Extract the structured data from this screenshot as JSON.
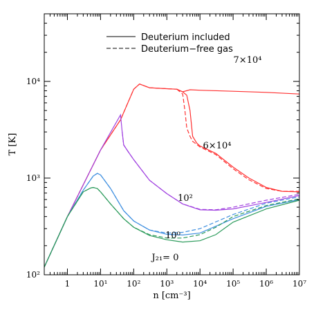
{
  "chart_data": {
    "type": "line",
    "xlabel": "n [cm⁻³]",
    "ylabel": "T [K]",
    "xscale": "log",
    "yscale": "log",
    "xlim": [
      0.2,
      10000000
    ],
    "ylim": [
      100,
      50000
    ],
    "x_ticks": [
      {
        "value": 1,
        "label": "1"
      },
      {
        "value": 10,
        "label": "10¹"
      },
      {
        "value": 100,
        "label": "10²"
      },
      {
        "value": 1000,
        "label": "10³"
      },
      {
        "value": 10000,
        "label": "10⁴"
      },
      {
        "value": 100000,
        "label": "10⁵"
      },
      {
        "value": 1000000,
        "label": "10⁶"
      },
      {
        "value": 10000000,
        "label": "10⁷"
      }
    ],
    "y_ticks": [
      {
        "value": 100,
        "label": "10²"
      },
      {
        "value": 1000,
        "label": "10³"
      },
      {
        "value": 10000,
        "label": "10⁴"
      }
    ],
    "legend": {
      "placement": "top-center",
      "entries": [
        {
          "label": "Deuterium included",
          "dash": "solid"
        },
        {
          "label": "Deuterium−free gas",
          "dash": "dashed"
        }
      ]
    },
    "series": [
      {
        "label": "7×10⁴",
        "color": "#ff3030",
        "dash": "solid",
        "x": [
          0.2,
          1,
          10,
          40,
          100,
          150,
          300,
          1000,
          2000,
          3000,
          5000,
          10000,
          100000,
          1000000,
          10000000
        ],
        "y": [
          120,
          400,
          1950,
          4000,
          8300,
          9400,
          8600,
          8400,
          8300,
          7800,
          8200,
          8100,
          7900,
          7700,
          7400
        ]
      },
      {
        "label": "",
        "color": "#ff3030",
        "dash": "dashed",
        "x": [
          0.2,
          1,
          10,
          40,
          100,
          150,
          300,
          1000,
          2000,
          2500
        ],
        "y": [
          120,
          400,
          1950,
          4000,
          8300,
          9400,
          8600,
          8400,
          8300,
          8000
        ]
      },
      {
        "label": "6×10⁴",
        "color": "#ff3030",
        "dash": "solid",
        "x": [
          2000,
          3000,
          4000,
          5000,
          6000,
          8000,
          10000,
          30000,
          100000,
          300000,
          1000000,
          3000000,
          10000000
        ],
        "y": [
          8300,
          7800,
          7200,
          5000,
          2700,
          2300,
          2150,
          1800,
          1300,
          1000,
          800,
          730,
          720
        ]
      },
      {
        "label": "",
        "color": "#ff3030",
        "dash": "dashed",
        "x": [
          2000,
          3000,
          3500,
          4000,
          5000,
          6000,
          10000,
          30000,
          100000,
          300000,
          1000000,
          3000000,
          10000000
        ],
        "y": [
          8300,
          7400,
          5000,
          3300,
          2700,
          2400,
          2100,
          1750,
          1250,
          960,
          780,
          730,
          730
        ]
      },
      {
        "label": "10²",
        "color": "#a040e0",
        "dash": "solid",
        "x": [
          0.2,
          1,
          10,
          40,
          45,
          50,
          70,
          100,
          300,
          1000,
          3000,
          10000,
          30000,
          100000,
          1000000,
          10000000
        ],
        "y": [
          120,
          400,
          1950,
          4500,
          3000,
          2200,
          1850,
          1550,
          950,
          690,
          540,
          470,
          465,
          480,
          560,
          660
        ]
      },
      {
        "label": "",
        "color": "#a040e0",
        "dash": "dashed",
        "x": [
          45,
          50,
          70,
          100,
          300,
          1000,
          3000,
          10000,
          30000,
          100000,
          1000000,
          10000000
        ],
        "y": [
          3000,
          2200,
          1850,
          1550,
          950,
          690,
          540,
          475,
          470,
          500,
          590,
          680
        ]
      },
      {
        "label": "10⁰",
        "color": "#4090e0",
        "dash": "solid",
        "x": [
          0.2,
          1,
          3,
          6,
          8,
          10,
          20,
          50,
          100,
          300,
          1000,
          3000,
          10000,
          100000,
          1000000,
          10000000
        ],
        "y": [
          120,
          400,
          750,
          1050,
          1120,
          1080,
          780,
          460,
          360,
          290,
          262,
          258,
          270,
          380,
          510,
          600
        ]
      },
      {
        "label": "",
        "color": "#4090e0",
        "dash": "dashed",
        "x": [
          0.2,
          1,
          3,
          6,
          8,
          10,
          20,
          50,
          100,
          300,
          1000,
          3000,
          10000,
          100000,
          1000000,
          10000000
        ],
        "y": [
          120,
          400,
          750,
          1050,
          1120,
          1080,
          780,
          460,
          360,
          290,
          270,
          275,
          300,
          420,
          550,
          640
        ]
      },
      {
        "label": "J₂₁= 0",
        "color": "#2a9a5a",
        "dash": "solid",
        "x": [
          0.2,
          1,
          3,
          5,
          6,
          8,
          10,
          20,
          50,
          100,
          300,
          1000,
          3000,
          10000,
          30000,
          100000,
          1000000,
          10000000
        ],
        "y": [
          120,
          400,
          720,
          790,
          800,
          780,
          720,
          540,
          380,
          310,
          255,
          230,
          218,
          225,
          260,
          350,
          480,
          590
        ]
      },
      {
        "label": "",
        "color": "#2a9a5a",
        "dash": "dashed",
        "x": [
          0.2,
          1,
          3,
          5,
          6,
          8,
          10,
          20,
          50,
          100,
          300,
          1000,
          3000,
          10000,
          30000,
          100000,
          1000000,
          10000000
        ],
        "y": [
          120,
          400,
          720,
          790,
          800,
          780,
          720,
          540,
          380,
          310,
          260,
          240,
          240,
          260,
          310,
          400,
          520,
          610
        ]
      }
    ]
  }
}
